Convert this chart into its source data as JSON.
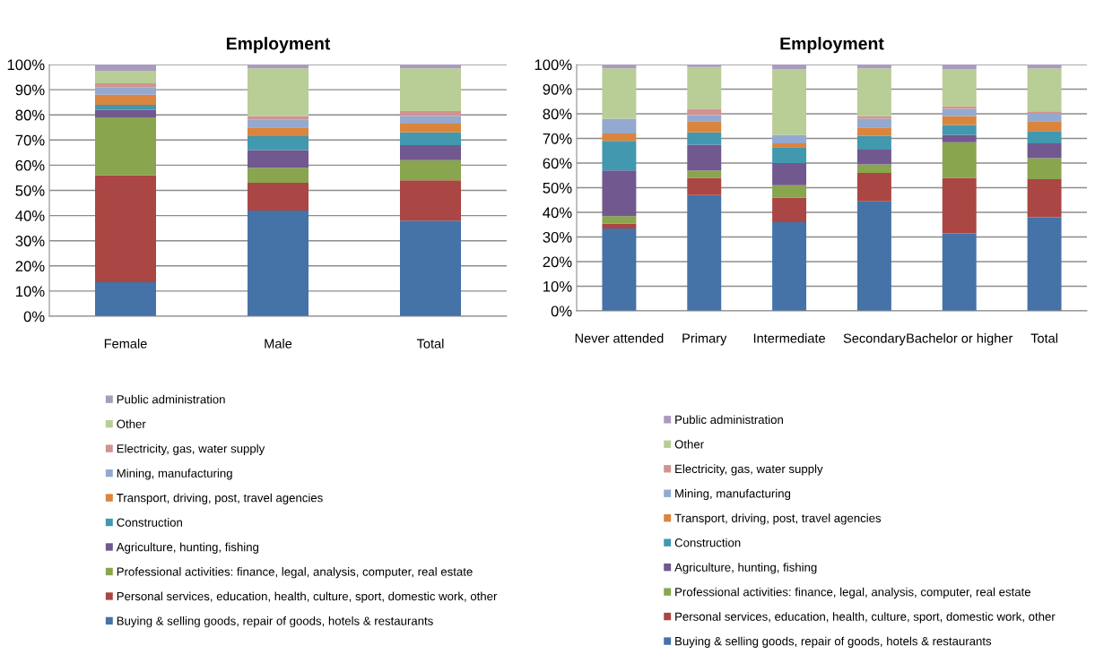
{
  "chart_data": [
    {
      "type": "bar",
      "title": "Employment",
      "stacked": true,
      "categories": [
        "Female",
        "Male",
        "Total"
      ],
      "ylim": [
        0,
        100
      ],
      "yticks": [
        {
          "value": 0,
          "label": "0%"
        },
        {
          "value": 10,
          "label": "10%"
        },
        {
          "value": 20,
          "label": "20%"
        },
        {
          "value": 30,
          "label": "30%"
        },
        {
          "value": 40,
          "label": "40%"
        },
        {
          "value": 50,
          "label": "50%"
        },
        {
          "value": 60,
          "label": "60%"
        },
        {
          "value": 70,
          "label": "70%"
        },
        {
          "value": 80,
          "label": "80%"
        },
        {
          "value": 90,
          "label": "90%"
        },
        {
          "value": 100,
          "label": "100%"
        }
      ],
      "grid": "y",
      "legend": "bottom",
      "series": [
        {
          "name": "Buying & selling goods, repair of goods, hotels & restaurants",
          "color": "#4572a7",
          "values": [
            13.5,
            42,
            38
          ]
        },
        {
          "name": "Personal services, education, health, culture, sport, domestic work, other",
          "color": "#aa4643",
          "values": [
            42.5,
            11,
            16
          ]
        },
        {
          "name": "Professional activities: finance, legal, analysis, computer, real estate",
          "color": "#89a54e",
          "values": [
            23,
            6,
            8
          ]
        },
        {
          "name": "Agriculture, hunting, fishing",
          "color": "#71588f",
          "values": [
            3,
            7,
            6
          ]
        },
        {
          "name": "Construction",
          "color": "#4198af",
          "values": [
            2,
            5.5,
            5
          ]
        },
        {
          "name": "Transport, driving, post, travel agencies",
          "color": "#db843d",
          "values": [
            4,
            3.5,
            3.5
          ]
        },
        {
          "name": "Mining, manufacturing",
          "color": "#93a9cf",
          "values": [
            3,
            3,
            3
          ]
        },
        {
          "name": "Electricity, gas, water supply",
          "color": "#d19392",
          "values": [
            1.5,
            1.5,
            2
          ]
        },
        {
          "name": "Other",
          "color": "#b9cd96",
          "values": [
            5,
            19,
            17
          ]
        },
        {
          "name": "Public administration",
          "color": "#a99bbd",
          "values": [
            2.5,
            1.5,
            1.5
          ]
        }
      ]
    },
    {
      "type": "bar",
      "title": "Employment",
      "stacked": true,
      "categories": [
        "Never attended",
        "Primary",
        "Intermediate",
        "Secondary",
        "Bachelor or higher",
        "Total"
      ],
      "ylim": [
        0,
        100
      ],
      "yticks": [
        {
          "value": 0,
          "label": "0%"
        },
        {
          "value": 10,
          "label": "10%"
        },
        {
          "value": 20,
          "label": "20%"
        },
        {
          "value": 30,
          "label": "30%"
        },
        {
          "value": 40,
          "label": "40%"
        },
        {
          "value": 50,
          "label": "50%"
        },
        {
          "value": 60,
          "label": "60%"
        },
        {
          "value": 70,
          "label": "70%"
        },
        {
          "value": 80,
          "label": "80%"
        },
        {
          "value": 90,
          "label": "90%"
        },
        {
          "value": 100,
          "label": "100%"
        }
      ],
      "grid": "y",
      "legend": "bottom",
      "series": [
        {
          "name": "Buying & selling goods, repair of goods, hotels & restaurants",
          "color": "#4572a7",
          "values": [
            33.5,
            47,
            36,
            44.5,
            31.5,
            38
          ]
        },
        {
          "name": "Personal services, education, health, culture, sport, domestic work, other",
          "color": "#aa4643",
          "values": [
            2,
            7,
            10,
            11.5,
            22.5,
            15.5
          ]
        },
        {
          "name": "Professional activities: finance, legal, analysis, computer, real estate",
          "color": "#89a54e",
          "values": [
            3,
            3,
            5,
            3.5,
            14.5,
            8.5
          ]
        },
        {
          "name": "Agriculture, hunting, fishing",
          "color": "#71588f",
          "values": [
            18.5,
            10.5,
            9,
            6,
            3,
            6
          ]
        },
        {
          "name": "Construction",
          "color": "#4198af",
          "values": [
            12,
            5,
            6.5,
            5.5,
            4,
            5
          ]
        },
        {
          "name": "Transport, driving, post, travel agencies",
          "color": "#db843d",
          "values": [
            3,
            4.5,
            1.5,
            3.5,
            3.5,
            4
          ]
        },
        {
          "name": "Mining, manufacturing",
          "color": "#93a9cf",
          "values": [
            6,
            2.5,
            3.5,
            3.5,
            3,
            3
          ]
        },
        {
          "name": "Electricity, gas, water supply",
          "color": "#d19392",
          "values": [
            0,
            2.5,
            0,
            1,
            1,
            1
          ]
        },
        {
          "name": "Other",
          "color": "#b9cd96",
          "values": [
            20.5,
            17,
            26.5,
            19.5,
            15,
            17.5
          ]
        },
        {
          "name": "Public administration",
          "color": "#a99bbd",
          "values": [
            1.5,
            1,
            2,
            1.5,
            2,
            1.5
          ]
        }
      ]
    }
  ]
}
